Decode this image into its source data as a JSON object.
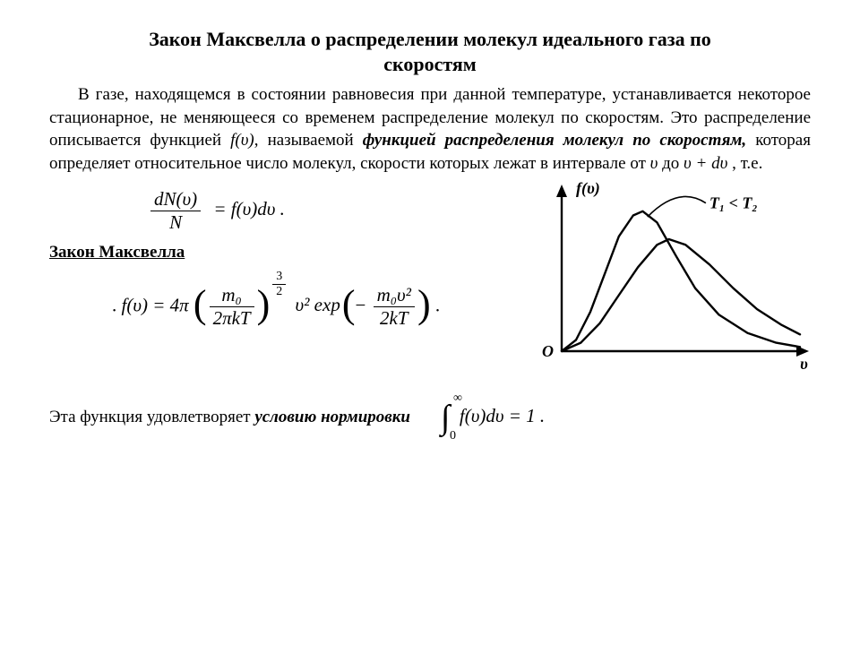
{
  "title_line1": "Закон Максвелла о распределении молекул идеального газа по",
  "title_line2": "скоростям",
  "paragraph_pre": "В газе, находящемся в состоянии равновесия при данной температуре, устанавливается некоторое стационарное, не меняющееся со временем распределение молекул по скоростям. Это распределение описывается функцией ",
  "f_of_v": "f(υ)",
  "paragraph_mid1": ", называемой ",
  "term": "функцией распределения молекул по скоростям,",
  "paragraph_mid2": " которая определяет относительное число молекул, скорости которых лежат в интервале от ",
  "v_sym": "υ",
  "to_word": " до ",
  "v_plus_dv": "υ + dυ",
  "ie": " , т.е.",
  "eq1_num": "dN(υ)",
  "eq1_den": "N",
  "eq1_rhs": "= f(υ)dυ .",
  "law_heading": "Закон Максвелла",
  "eq2_pre": "f(υ) = 4π",
  "eq2_frac1_num": "m₀",
  "eq2_frac1_den": "2πkT",
  "eq2_exp32_num": "3",
  "eq2_exp32_den": "2",
  "eq2_mid": "υ² exp",
  "eq2_frac2_num": "m₀υ²",
  "eq2_frac2_den": "2kT",
  "eq2_minus": "−",
  "eq2_end": ".",
  "norm_text": "Эта функция удовлетворяет ",
  "norm_term": "условию нормировки",
  "int_top": "∞",
  "int_bot": "0",
  "int_body": "f(υ)dυ = 1 .",
  "chart": {
    "type": "line",
    "y_axis_label": "f(υ)",
    "x_axis_label": "υ",
    "origin_label": "O",
    "annotation": "T₁ < T₂",
    "axis_color": "#000000",
    "line_color": "#000000",
    "line_width": 2.4,
    "background": "#ffffff",
    "xlim": [
      0,
      10
    ],
    "ylim": [
      0,
      1.05
    ],
    "curves": [
      {
        "name": "T1",
        "peak_x": 3.2,
        "peak_y": 1.0,
        "points": [
          [
            0,
            0
          ],
          [
            0.6,
            0.08
          ],
          [
            1.2,
            0.28
          ],
          [
            1.8,
            0.55
          ],
          [
            2.4,
            0.82
          ],
          [
            3.0,
            0.97
          ],
          [
            3.4,
            1.0
          ],
          [
            4.0,
            0.92
          ],
          [
            4.8,
            0.68
          ],
          [
            5.6,
            0.45
          ],
          [
            6.6,
            0.26
          ],
          [
            7.8,
            0.13
          ],
          [
            9.0,
            0.06
          ],
          [
            10,
            0.03
          ]
        ]
      },
      {
        "name": "T2",
        "peak_x": 4.3,
        "peak_y": 0.8,
        "points": [
          [
            0,
            0
          ],
          [
            0.8,
            0.06
          ],
          [
            1.6,
            0.2
          ],
          [
            2.4,
            0.4
          ],
          [
            3.2,
            0.6
          ],
          [
            4.0,
            0.76
          ],
          [
            4.5,
            0.8
          ],
          [
            5.2,
            0.76
          ],
          [
            6.2,
            0.62
          ],
          [
            7.2,
            0.45
          ],
          [
            8.2,
            0.3
          ],
          [
            9.2,
            0.19
          ],
          [
            10,
            0.12
          ]
        ]
      }
    ]
  }
}
